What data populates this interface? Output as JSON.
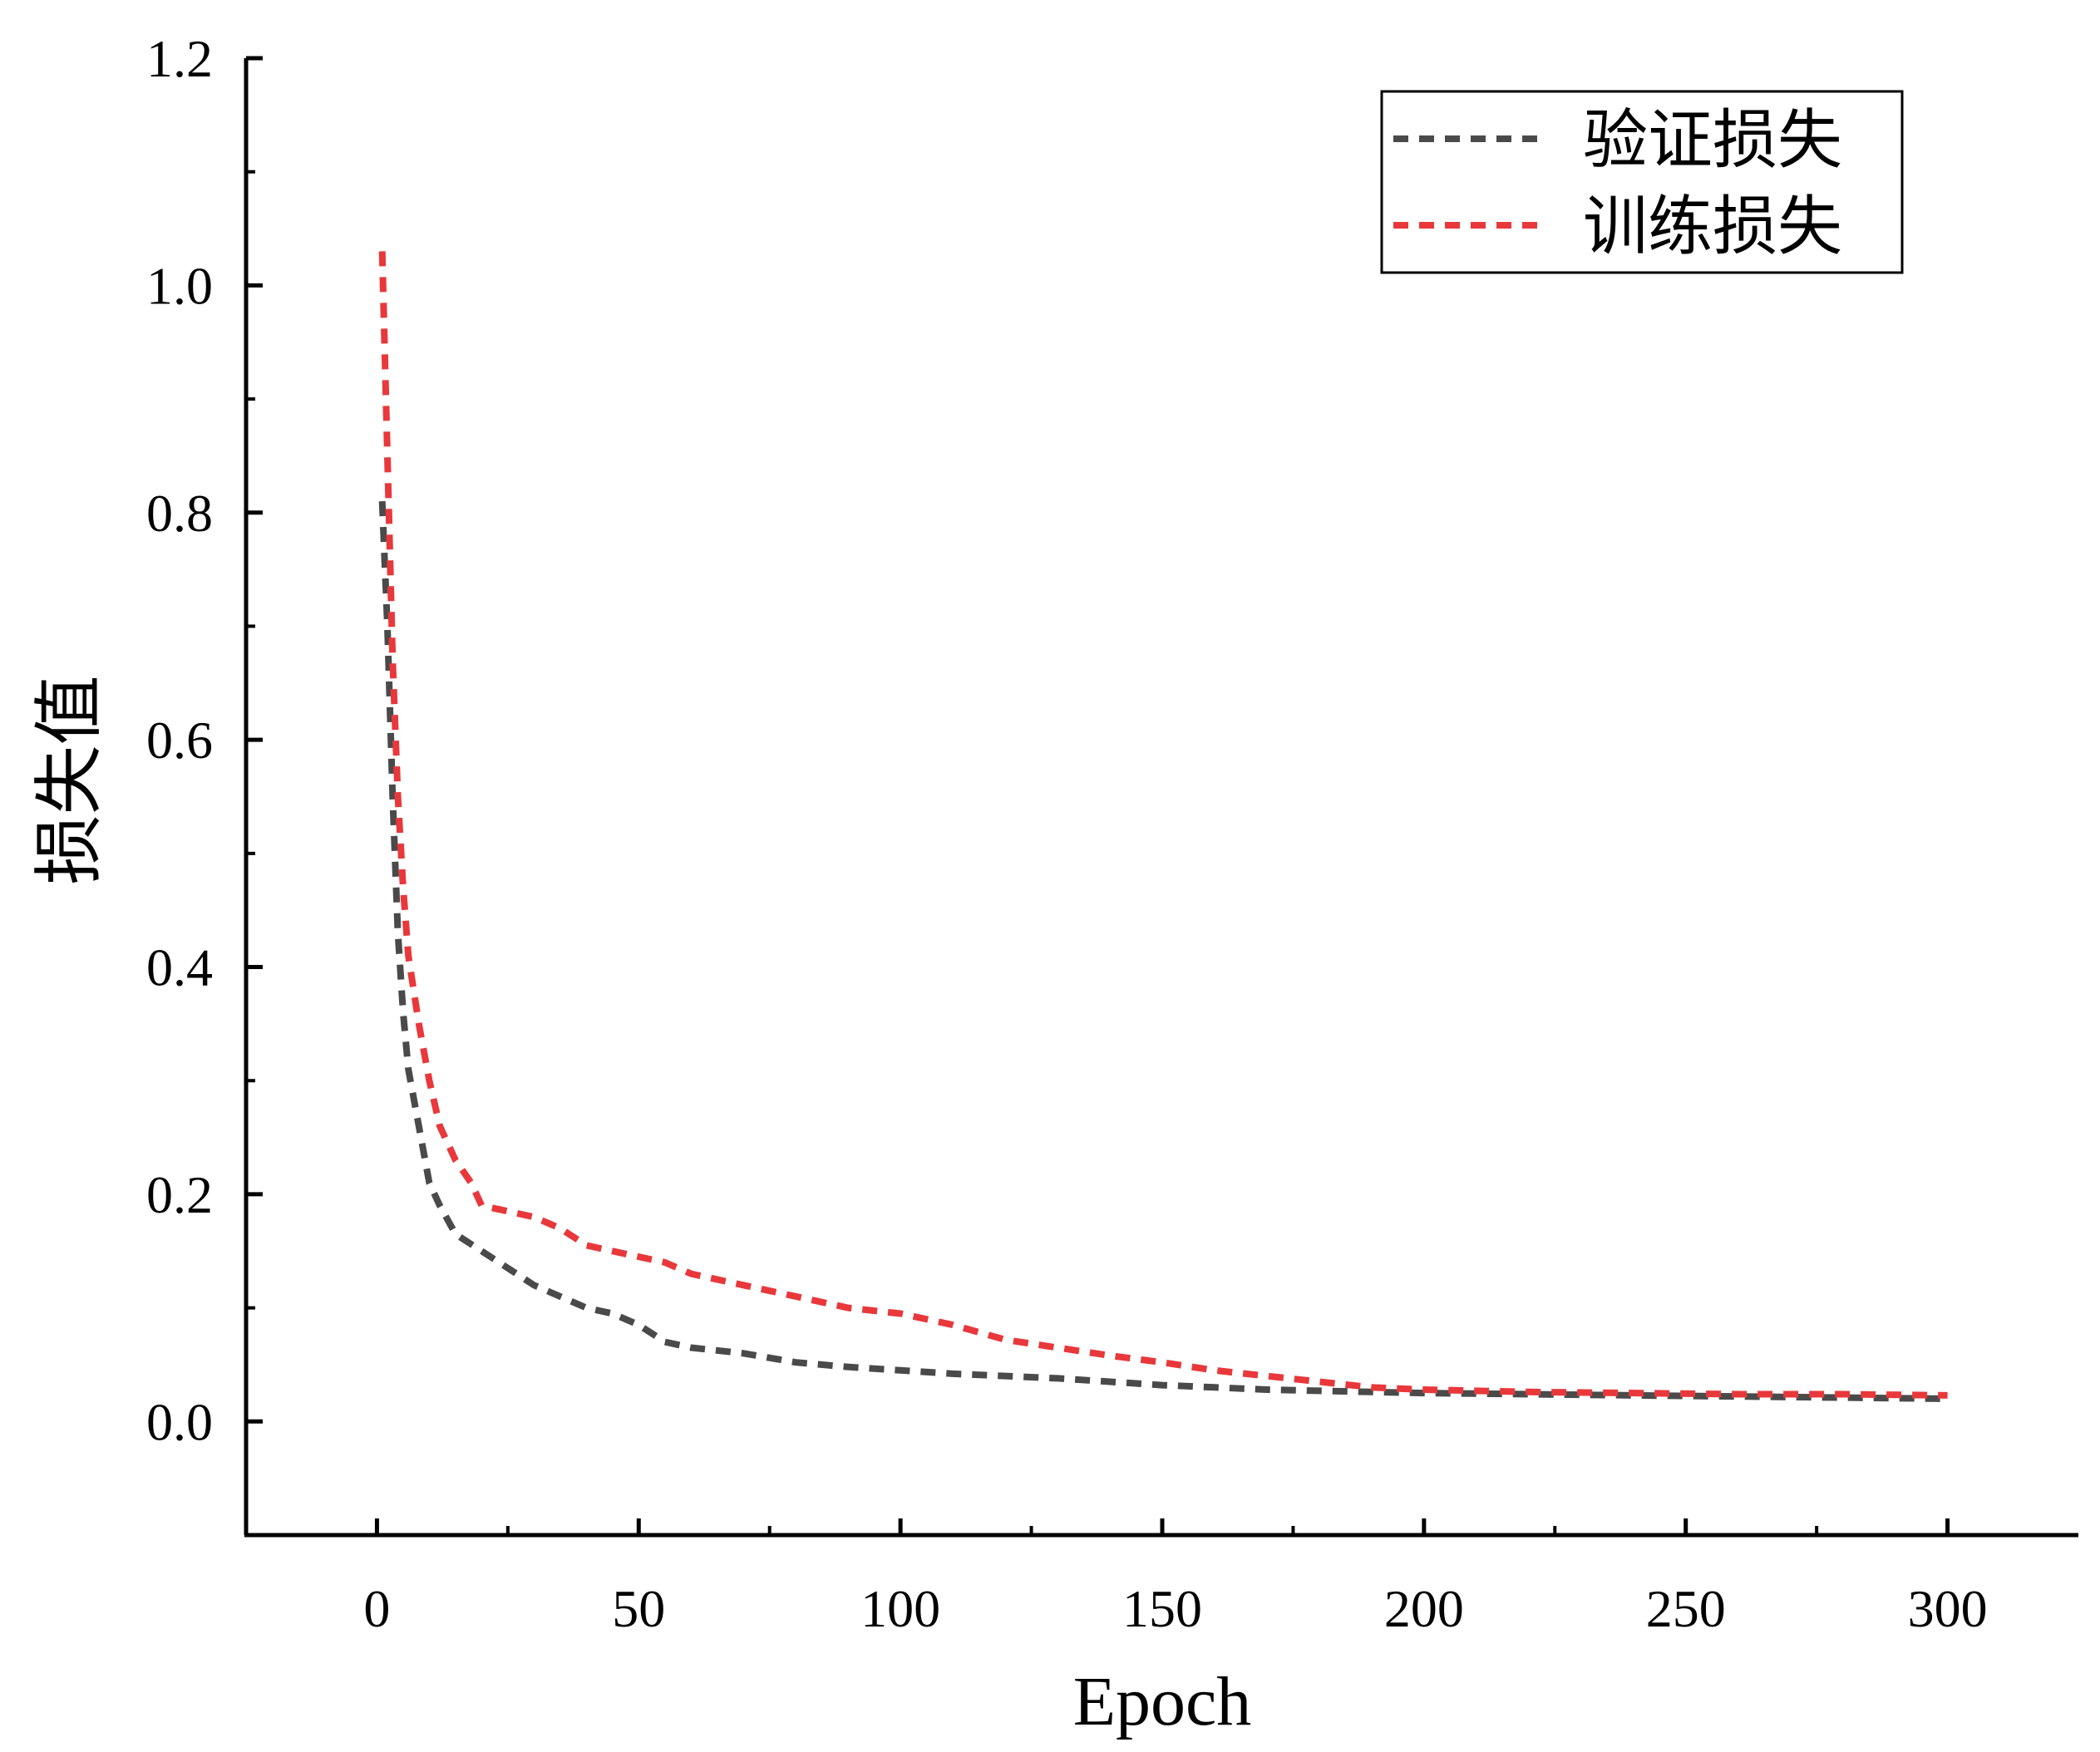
{
  "chart_data": {
    "type": "line",
    "title": "",
    "xlabel": "Epoch",
    "ylabel": "损失值",
    "xlim": [
      -25,
      325
    ],
    "ylim": [
      -0.1,
      1.2
    ],
    "xticks": [
      0,
      50,
      100,
      150,
      200,
      250,
      300
    ],
    "xtick_labels": [
      "0",
      "50",
      "100",
      "150",
      "200",
      "250",
      "300"
    ],
    "yticks": [
      0.0,
      0.2,
      0.4,
      0.6,
      0.8,
      1.0,
      1.2
    ],
    "ytick_labels": [
      "0.0",
      "0.2",
      "0.4",
      "0.6",
      "0.8",
      "1.0",
      "1.2"
    ],
    "grid": false,
    "legend_position": "top-right",
    "series": [
      {
        "name": "验证损失",
        "color": "#4a4a4a",
        "line_style": "dashed",
        "x": [
          1,
          2,
          3,
          4,
          5,
          6,
          8,
          10,
          12,
          15,
          20,
          25,
          30,
          35,
          40,
          45,
          50,
          55,
          60,
          70,
          80,
          90,
          100,
          110,
          120,
          130,
          140,
          150,
          160,
          170,
          180,
          190,
          200,
          220,
          240,
          260,
          280,
          300
        ],
        "y": [
          0.81,
          0.7,
          0.55,
          0.43,
          0.36,
          0.31,
          0.26,
          0.21,
          0.19,
          0.165,
          0.15,
          0.135,
          0.12,
          0.11,
          0.1,
          0.095,
          0.085,
          0.07,
          0.065,
          0.06,
          0.052,
          0.048,
          0.045,
          0.042,
          0.04,
          0.038,
          0.035,
          0.032,
          0.03,
          0.028,
          0.027,
          0.026,
          0.025,
          0.024,
          0.023,
          0.022,
          0.021,
          0.02
        ]
      },
      {
        "name": "训练损失",
        "color": "#e8383b",
        "line_style": "dashed",
        "x": [
          1,
          2,
          3,
          4,
          5,
          6,
          7,
          8,
          10,
          12,
          15,
          18,
          20,
          25,
          30,
          35,
          40,
          45,
          50,
          55,
          60,
          70,
          80,
          90,
          100,
          110,
          120,
          130,
          140,
          150,
          160,
          170,
          180,
          190,
          200,
          220,
          240,
          260,
          280,
          300
        ],
        "y": [
          1.03,
          0.85,
          0.67,
          0.55,
          0.47,
          0.41,
          0.38,
          0.35,
          0.3,
          0.26,
          0.23,
          0.21,
          0.19,
          0.185,
          0.18,
          0.17,
          0.155,
          0.15,
          0.145,
          0.14,
          0.13,
          0.12,
          0.11,
          0.1,
          0.095,
          0.085,
          0.072,
          0.065,
          0.058,
          0.052,
          0.045,
          0.04,
          0.035,
          0.03,
          0.028,
          0.026,
          0.025,
          0.024,
          0.024,
          0.023
        ]
      }
    ]
  }
}
